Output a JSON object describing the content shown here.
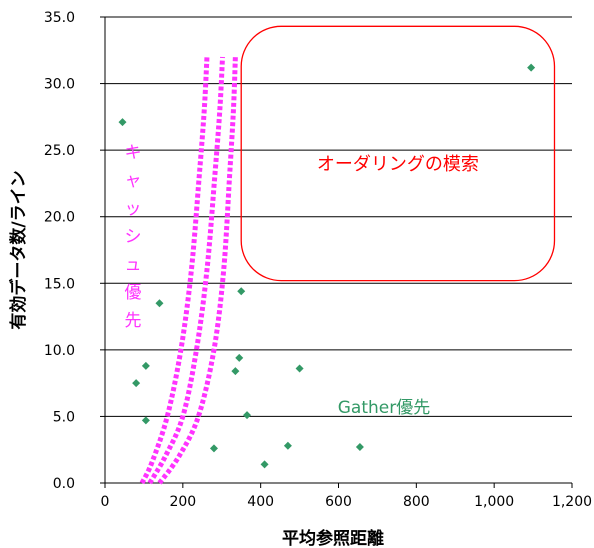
{
  "chart_data": {
    "type": "scatter",
    "xlabel": "平均参照距離",
    "ylabel": "有効データ数/ライン",
    "xlim": [
      0,
      1200
    ],
    "ylim": [
      0,
      35
    ],
    "x_ticks": [
      0,
      200,
      400,
      600,
      800,
      1000,
      1200
    ],
    "x_tick_labels": [
      "0",
      "200",
      "400",
      "600",
      "800",
      "1,000",
      "1,200"
    ],
    "y_ticks": [
      0,
      5,
      10,
      15,
      20,
      25,
      30,
      35
    ],
    "y_tick_labels": [
      "0.0",
      "5.0",
      "10.0",
      "15.0",
      "20.0",
      "25.0",
      "30.0",
      "35.0"
    ],
    "grid": "horizontal",
    "marker_color": "#339966",
    "points": [
      {
        "x": 45,
        "y": 27.1
      },
      {
        "x": 80,
        "y": 7.5
      },
      {
        "x": 105,
        "y": 8.8
      },
      {
        "x": 105,
        "y": 4.7
      },
      {
        "x": 140,
        "y": 13.5
      },
      {
        "x": 280,
        "y": 2.6
      },
      {
        "x": 335,
        "y": 8.4
      },
      {
        "x": 345,
        "y": 9.4
      },
      {
        "x": 350,
        "y": 14.4
      },
      {
        "x": 365,
        "y": 5.1
      },
      {
        "x": 410,
        "y": 1.4
      },
      {
        "x": 470,
        "y": 2.8
      },
      {
        "x": 500,
        "y": 8.6
      },
      {
        "x": 655,
        "y": 2.7
      },
      {
        "x": 1095,
        "y": 31.2
      }
    ],
    "annotations": {
      "ordering": {
        "text": "オーダリングの模索",
        "color": "#ff0000",
        "x": [
          350,
          1155
        ],
        "y": [
          15.2,
          34.3
        ]
      },
      "cache": {
        "text": "キャッシュ優先",
        "color": "#ff33ff"
      },
      "gather": {
        "text": "Gather優先",
        "color": "#339966"
      },
      "curves": [
        [
          [
            95,
            0
          ],
          [
            120,
            1.5
          ],
          [
            160,
            5
          ],
          [
            195,
            10
          ],
          [
            222,
            16
          ],
          [
            242,
            23
          ],
          [
            255,
            28
          ],
          [
            262,
            32
          ]
        ],
        [
          [
            115,
            0
          ],
          [
            155,
            2
          ],
          [
            200,
            5
          ],
          [
            235,
            10
          ],
          [
            262,
            16
          ],
          [
            282,
            23
          ],
          [
            295,
            28
          ],
          [
            302,
            32
          ]
        ],
        [
          [
            140,
            0
          ],
          [
            190,
            2
          ],
          [
            240,
            5
          ],
          [
            280,
            10
          ],
          [
            305,
            16
          ],
          [
            320,
            23
          ],
          [
            330,
            28
          ],
          [
            335,
            32
          ]
        ]
      ]
    }
  }
}
